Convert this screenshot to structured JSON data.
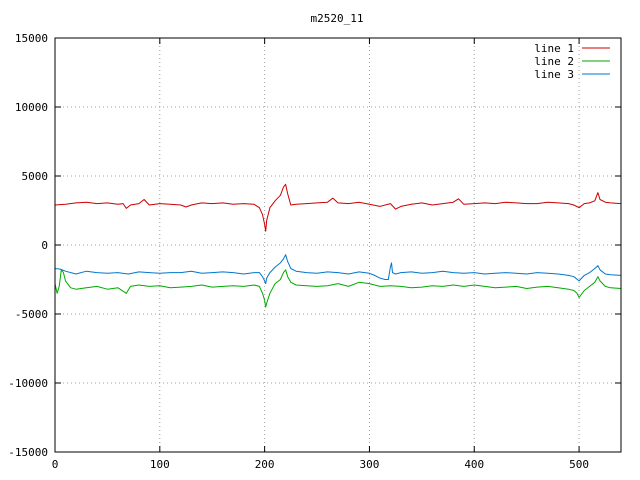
{
  "chart_data": {
    "type": "line",
    "title": "m2520_11",
    "xlabel": "",
    "ylabel": "",
    "xlim": [
      0,
      540
    ],
    "ylim": [
      -15000,
      15000
    ],
    "xticks": [
      0,
      100,
      200,
      300,
      400,
      500
    ],
    "yticks": [
      -15000,
      -10000,
      -5000,
      0,
      5000,
      10000,
      15000
    ],
    "grid": true,
    "legend_position": "top-right",
    "series": [
      {
        "name": "line 1",
        "color": "#cc0000",
        "x": [
          0,
          10,
          20,
          30,
          40,
          50,
          60,
          65,
          68,
          72,
          80,
          85,
          90,
          100,
          110,
          120,
          125,
          130,
          140,
          150,
          160,
          170,
          180,
          190,
          195,
          198,
          200,
          201,
          202,
          205,
          210,
          215,
          218,
          220,
          222,
          225,
          230,
          240,
          250,
          260,
          265,
          270,
          280,
          290,
          300,
          310,
          320,
          325,
          330,
          340,
          350,
          360,
          370,
          380,
          385,
          390,
          400,
          410,
          420,
          430,
          440,
          450,
          460,
          470,
          480,
          490,
          495,
          500,
          505,
          510,
          515,
          518,
          520,
          525,
          530,
          540
        ],
        "y": [
          2900,
          2950,
          3050,
          3100,
          3000,
          3050,
          2950,
          3000,
          2650,
          2900,
          3000,
          3300,
          2900,
          3000,
          2950,
          2900,
          2750,
          2900,
          3050,
          3000,
          3050,
          2950,
          3000,
          2950,
          2700,
          2200,
          1500,
          1000,
          1800,
          2700,
          3200,
          3600,
          4200,
          4400,
          3700,
          2900,
          2950,
          3000,
          3050,
          3100,
          3400,
          3050,
          3000,
          3100,
          2950,
          2800,
          3000,
          2600,
          2800,
          2950,
          3050,
          2900,
          3000,
          3100,
          3350,
          2950,
          3000,
          3050,
          3000,
          3100,
          3050,
          3000,
          3000,
          3100,
          3050,
          3000,
          2900,
          2700,
          3000,
          3050,
          3200,
          3800,
          3300,
          3100,
          3050,
          3000
        ]
      },
      {
        "name": "line 2",
        "color": "#00aa00",
        "x": [
          0,
          2,
          4,
          6,
          8,
          10,
          15,
          20,
          30,
          40,
          50,
          60,
          68,
          72,
          80,
          90,
          100,
          110,
          120,
          130,
          140,
          150,
          160,
          170,
          180,
          190,
          195,
          198,
          200,
          201,
          202,
          205,
          210,
          215,
          218,
          220,
          222,
          225,
          230,
          240,
          250,
          260,
          270,
          280,
          290,
          300,
          310,
          320,
          330,
          340,
          350,
          360,
          370,
          380,
          390,
          400,
          410,
          420,
          430,
          440,
          450,
          460,
          470,
          480,
          490,
          495,
          498,
          500,
          505,
          510,
          515,
          518,
          520,
          525,
          530,
          540
        ],
        "y": [
          -2800,
          -3500,
          -3000,
          -1800,
          -2000,
          -2600,
          -3100,
          -3200,
          -3100,
          -3000,
          -3200,
          -3100,
          -3500,
          -3000,
          -2900,
          -3000,
          -2950,
          -3100,
          -3050,
          -3000,
          -2900,
          -3050,
          -3000,
          -2950,
          -3000,
          -2900,
          -3000,
          -3500,
          -4000,
          -4500,
          -4200,
          -3500,
          -2800,
          -2500,
          -2000,
          -1800,
          -2300,
          -2700,
          -2900,
          -2950,
          -3000,
          -2950,
          -2800,
          -3000,
          -2700,
          -2800,
          -3000,
          -2950,
          -3000,
          -3100,
          -3050,
          -2950,
          -3000,
          -2900,
          -3000,
          -2900,
          -3000,
          -3100,
          -3050,
          -3000,
          -3150,
          -3050,
          -3000,
          -3100,
          -3200,
          -3300,
          -3500,
          -3800,
          -3300,
          -3000,
          -2700,
          -2300,
          -2600,
          -3000,
          -3100,
          -3150
        ]
      },
      {
        "name": "line 3",
        "color": "#0077cc",
        "x": [
          0,
          5,
          10,
          20,
          30,
          40,
          50,
          60,
          70,
          80,
          90,
          100,
          110,
          120,
          130,
          140,
          150,
          160,
          170,
          180,
          190,
          195,
          198,
          200,
          201,
          202,
          205,
          210,
          215,
          218,
          220,
          222,
          225,
          230,
          240,
          250,
          260,
          270,
          280,
          290,
          300,
          305,
          310,
          315,
          318,
          320,
          321,
          322,
          325,
          330,
          340,
          350,
          360,
          370,
          380,
          390,
          400,
          410,
          420,
          430,
          440,
          450,
          460,
          470,
          480,
          490,
          495,
          500,
          505,
          510,
          515,
          518,
          520,
          525,
          530,
          540
        ],
        "y": [
          -1700,
          -1750,
          -1900,
          -2100,
          -1900,
          -2000,
          -2050,
          -2000,
          -2100,
          -1950,
          -2000,
          -2050,
          -2000,
          -2000,
          -1900,
          -2050,
          -2000,
          -1950,
          -2000,
          -2100,
          -2000,
          -2000,
          -2300,
          -2600,
          -2800,
          -2400,
          -2000,
          -1600,
          -1300,
          -1000,
          -700,
          -1200,
          -1700,
          -1900,
          -2000,
          -2050,
          -1950,
          -2000,
          -2100,
          -1950,
          -2050,
          -2200,
          -2400,
          -2500,
          -2500,
          -1600,
          -1300,
          -2000,
          -2100,
          -2000,
          -1950,
          -2050,
          -2000,
          -1900,
          -2000,
          -2050,
          -2000,
          -2100,
          -2050,
          -2000,
          -2050,
          -2100,
          -2000,
          -2050,
          -2100,
          -2200,
          -2300,
          -2600,
          -2200,
          -2000,
          -1700,
          -1500,
          -1800,
          -2100,
          -2150,
          -2200
        ]
      }
    ]
  }
}
